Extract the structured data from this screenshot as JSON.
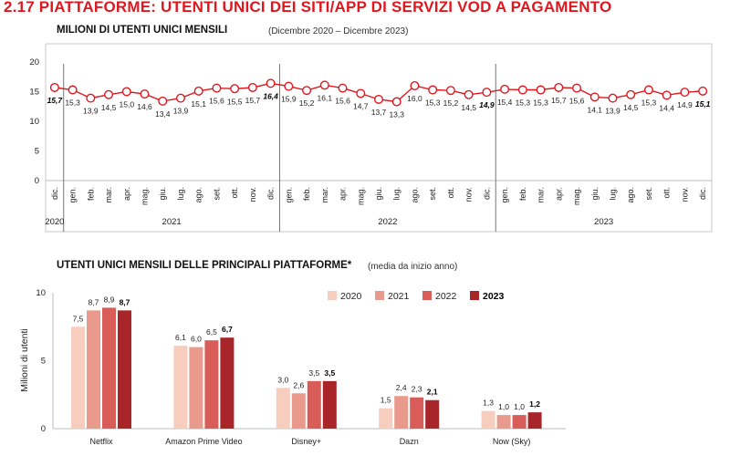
{
  "header": {
    "title": "2.17 PIATTAFORME: UTENTI UNICI DEI SITI/APP DI SERVIZI VOD A PAGAMENTO"
  },
  "colors": {
    "title": "#e0171f",
    "line": "#e0171f",
    "year_2020": "#f7cdbd",
    "year_2021": "#e99a8c",
    "year_2022": "#d85c58",
    "year_2023": "#a8252a"
  },
  "chart_data": [
    {
      "type": "line",
      "title": "MILIONI DI UTENTI UNICI MENSILI",
      "subtitle": "(Dicembre 2020 – Dicembre 2023)",
      "ylim": [
        0,
        20
      ],
      "yticks": [
        0,
        5,
        10,
        15,
        20
      ],
      "grid": false,
      "x": [
        "dic.",
        "gen.",
        "feb.",
        "mar.",
        "apr.",
        "mag.",
        "giu.",
        "lug.",
        "ago.",
        "set.",
        "ott.",
        "nov.",
        "dic.",
        "gen.",
        "feb.",
        "mar.",
        "apr.",
        "mag.",
        "giu.",
        "lug.",
        "ago.",
        "set.",
        "ott.",
        "nov.",
        "dic.",
        "gen.",
        "feb.",
        "mar.",
        "apr.",
        "mag.",
        "giu.",
        "lug.",
        "ago.",
        "set.",
        "ott.",
        "nov.",
        "dic."
      ],
      "values": [
        15.7,
        15.3,
        13.9,
        14.5,
        15.0,
        14.6,
        13.4,
        13.9,
        15.1,
        15.6,
        15.5,
        15.7,
        16.4,
        15.9,
        15.2,
        16.1,
        15.6,
        14.7,
        13.7,
        13.3,
        16.0,
        15.3,
        15.2,
        14.5,
        14.9,
        15.4,
        15.3,
        15.3,
        15.7,
        15.6,
        14.1,
        13.9,
        14.5,
        15.3,
        14.4,
        14.9,
        15.1
      ],
      "labels": [
        "15,7",
        "15,3",
        "13,9",
        "14,5",
        "15,0",
        "14,6",
        "13,4",
        "13,9",
        "15,1",
        "15,6",
        "15,5",
        "15,7",
        "16,4",
        "15,9",
        "15,2",
        "16,1",
        "15,6",
        "14,7",
        "13,7",
        "13,3",
        "16,0",
        "15,3",
        "15,2",
        "14,5",
        "14,9",
        "15,4",
        "15,3",
        "15,3",
        "15,7",
        "15,6",
        "14,1",
        "13,9",
        "14,5",
        "15,3",
        "14,4",
        "14,9",
        "15,1"
      ],
      "bold_labels": [
        0,
        12,
        24,
        36
      ],
      "years": [
        {
          "label": "2020",
          "start": 0,
          "end": 0
        },
        {
          "label": "2021",
          "start": 1,
          "end": 12
        },
        {
          "label": "2022",
          "start": 13,
          "end": 24
        },
        {
          "label": "2023",
          "start": 25,
          "end": 36
        }
      ]
    },
    {
      "type": "bar",
      "title": "UTENTI UNICI MENSILI DELLE PRINCIPALI PIATTAFORME*",
      "subtitle": "(media da inizio anno)",
      "ylabel": "Milioni di utenti",
      "ylim": [
        0,
        10
      ],
      "yticks": [
        0,
        5,
        10
      ],
      "legend_position": "top-right",
      "categories": [
        "Netflix",
        "Amazon Prime Video",
        "Disney+",
        "Dazn",
        "Now (Sky)"
      ],
      "series": [
        {
          "name": "2020",
          "values": [
            7.5,
            6.1,
            3.0,
            1.5,
            1.3
          ],
          "labels": [
            "7,5",
            "6,1",
            "3,0",
            "1,5",
            "1,3"
          ]
        },
        {
          "name": "2021",
          "values": [
            8.7,
            6.0,
            2.6,
            2.4,
            1.0
          ],
          "labels": [
            "8,7",
            "6,0",
            "2,6",
            "2,4",
            "1,0"
          ]
        },
        {
          "name": "2022",
          "values": [
            8.9,
            6.5,
            3.5,
            2.3,
            1.0
          ],
          "labels": [
            "8,9",
            "6,5",
            "3,5",
            "2,3",
            "1,0"
          ]
        },
        {
          "name": "2023",
          "values": [
            8.7,
            6.7,
            3.5,
            2.1,
            1.2
          ],
          "labels": [
            "8,7",
            "6,7",
            "3,5",
            "2,1",
            "1,2"
          ]
        }
      ]
    }
  ]
}
